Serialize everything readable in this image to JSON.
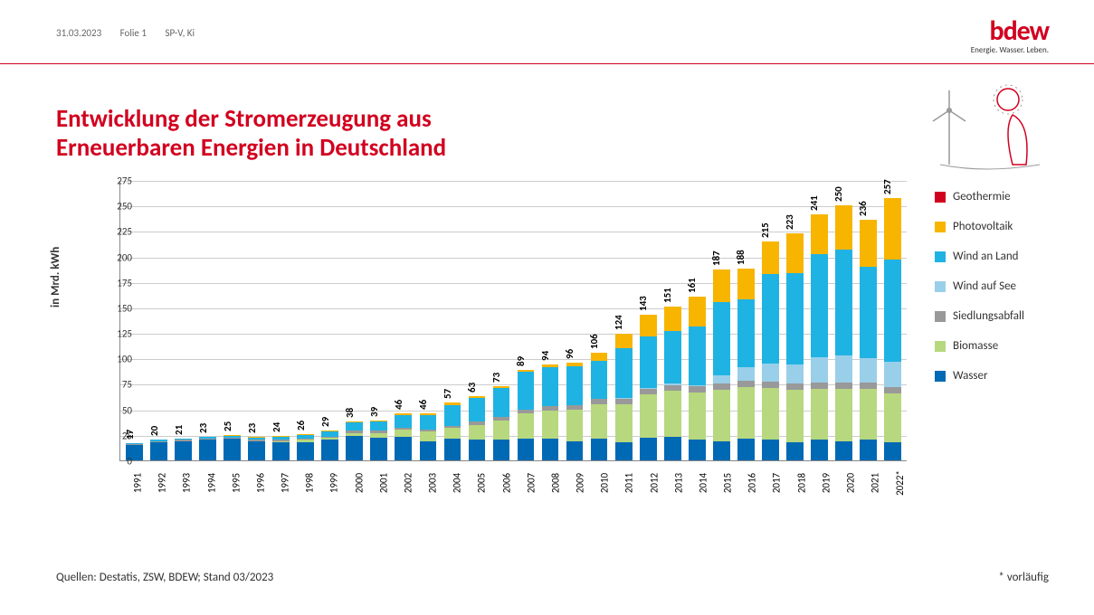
{
  "header": {
    "date": "31.03.2023",
    "slide": "Folie 1",
    "dept": "SP-V, Ki"
  },
  "logo": {
    "name": "bdew",
    "tagline": "Energie. Wasser. Leben."
  },
  "title_line1": "Entwicklung der Stromerzeugung aus",
  "title_line2": "Erneuerbaren Energien in Deutschland",
  "chart": {
    "type": "stacked-bar",
    "ylabel": "in Mrd. kWh",
    "ylim": [
      0,
      275
    ],
    "ytick_step": 25,
    "grid_color": "#cccccc",
    "axis_color": "#888888",
    "bg_color": "#ffffff",
    "label_fontsize": 11,
    "title_fontsize": 27,
    "bar_width_ratio": 0.78,
    "categories": [
      "1991",
      "1992",
      "1993",
      "1994",
      "1995",
      "1996",
      "1997",
      "1998",
      "1999",
      "2000",
      "2001",
      "2002",
      "2003",
      "2004",
      "2005",
      "2006",
      "2007",
      "2008",
      "2009",
      "2010",
      "2011",
      "2012",
      "2013",
      "2014",
      "2015",
      "2016",
      "2017",
      "2018",
      "2019",
      "2020",
      "2021",
      "2022*"
    ],
    "totals": [
      17,
      20,
      21,
      23,
      25,
      23,
      24,
      26,
      29,
      38,
      39,
      46,
      46,
      57,
      63,
      73,
      89,
      94,
      96,
      106,
      124,
      143,
      151,
      161,
      187,
      188,
      215,
      223,
      241,
      250,
      236,
      257
    ],
    "series": [
      {
        "key": "wasser",
        "label": "Wasser",
        "color": "#0069b4",
        "values": [
          15,
          18,
          19,
          20,
          21,
          19,
          18,
          18,
          20,
          24,
          22,
          23,
          19,
          21,
          20,
          20,
          21,
          21,
          19,
          21,
          18,
          22,
          23,
          20,
          19,
          21,
          20,
          18,
          20,
          19,
          20,
          18
        ]
      },
      {
        "key": "biomasse",
        "label": "Biomasse",
        "color": "#b7d87e",
        "values": [
          0,
          0,
          0,
          0,
          0,
          0,
          1,
          2,
          2,
          3,
          5,
          7,
          9,
          11,
          15,
          19,
          25,
          28,
          31,
          34,
          37,
          43,
          45,
          47,
          50,
          51,
          51,
          51,
          50,
          51,
          50,
          48
        ]
      },
      {
        "key": "siedlungsabfall",
        "label": "Siedlungsabfall",
        "color": "#999999",
        "values": [
          1,
          1,
          1,
          1,
          1,
          1,
          1,
          1,
          1,
          2,
          2,
          2,
          2,
          2,
          3,
          4,
          4,
          4,
          4,
          5,
          5,
          5,
          6,
          6,
          6,
          6,
          6,
          6,
          6,
          6,
          6,
          6
        ]
      },
      {
        "key": "wind_see",
        "label": "Wind auf See",
        "color": "#9acfe9",
        "values": [
          0,
          0,
          0,
          0,
          0,
          0,
          0,
          0,
          0,
          0,
          0,
          0,
          0,
          0,
          0,
          0,
          0,
          0,
          0,
          0,
          1,
          1,
          1,
          1,
          8,
          13,
          18,
          19,
          25,
          27,
          24,
          25
        ]
      },
      {
        "key": "wind_land",
        "label": "Wind an Land",
        "color": "#1fb3e3",
        "values": [
          1,
          1,
          1,
          2,
          2,
          2,
          3,
          4,
          5,
          8,
          9,
          12,
          14,
          20,
          23,
          28,
          37,
          38,
          38,
          38,
          49,
          51,
          52,
          57,
          72,
          67,
          88,
          90,
          101,
          104,
          90,
          100
        ]
      },
      {
        "key": "photovoltaik",
        "label": "Photovoltaik",
        "color": "#f7b500",
        "values": [
          0,
          0,
          0,
          0,
          1,
          1,
          1,
          1,
          1,
          1,
          1,
          2,
          2,
          3,
          2,
          2,
          2,
          3,
          4,
          8,
          14,
          21,
          24,
          30,
          32,
          30,
          32,
          39,
          39,
          43,
          46,
          60
        ]
      },
      {
        "key": "geothermie",
        "label": "Geothermie",
        "color": "#d2001f",
        "values": [
          0,
          0,
          0,
          0,
          0,
          0,
          0,
          0,
          0,
          0,
          0,
          0,
          0,
          0,
          0,
          0,
          0,
          0,
          0,
          0,
          0,
          0,
          0,
          0,
          0,
          0,
          0,
          0,
          0,
          0,
          0,
          0
        ]
      }
    ],
    "legend_order": [
      "geothermie",
      "photovoltaik",
      "wind_land",
      "wind_see",
      "siedlungsabfall",
      "biomasse",
      "wasser"
    ]
  },
  "sources": "Quellen: Destatis, ZSW, BDEW; Stand 03/2023",
  "footnote": "* vorläufig",
  "colors": {
    "brand_red": "#d2001f",
    "text_gray": "#666666",
    "text_dark": "#333333"
  }
}
